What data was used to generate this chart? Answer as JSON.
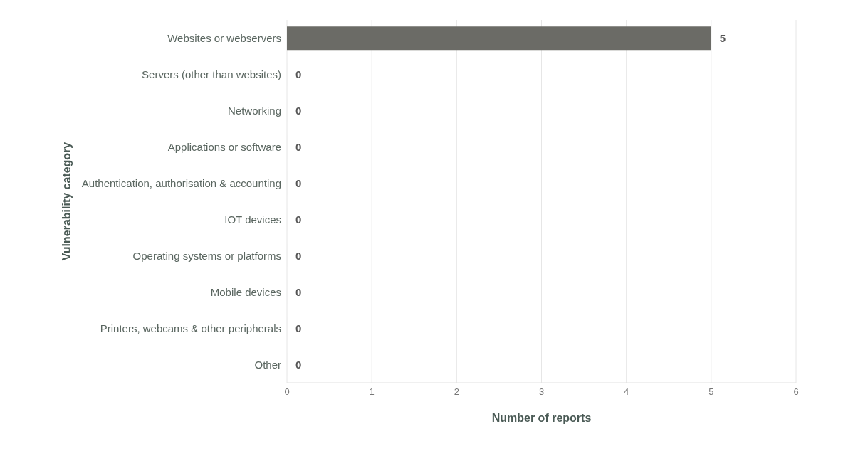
{
  "chart_data": {
    "type": "bar",
    "orientation": "horizontal",
    "xlabel": "Number of reports",
    "ylabel": "Vulnerability category",
    "categories": [
      "Websites or webservers",
      "Servers (other than websites)",
      "Networking",
      "Applications or software",
      "Authentication, authorisation & accounting",
      "IOT devices",
      "Operating systems or platforms",
      "Mobile devices",
      "Printers, webcams & other peripherals",
      "Other"
    ],
    "values": [
      5,
      0,
      0,
      0,
      0,
      0,
      0,
      0,
      0,
      0
    ],
    "color": "#6b6b66",
    "xlim": [
      0,
      6
    ],
    "xticks": [
      0,
      1,
      2,
      3,
      4,
      5,
      6
    ],
    "grid": "x",
    "data_labels": true,
    "legend": false
  }
}
